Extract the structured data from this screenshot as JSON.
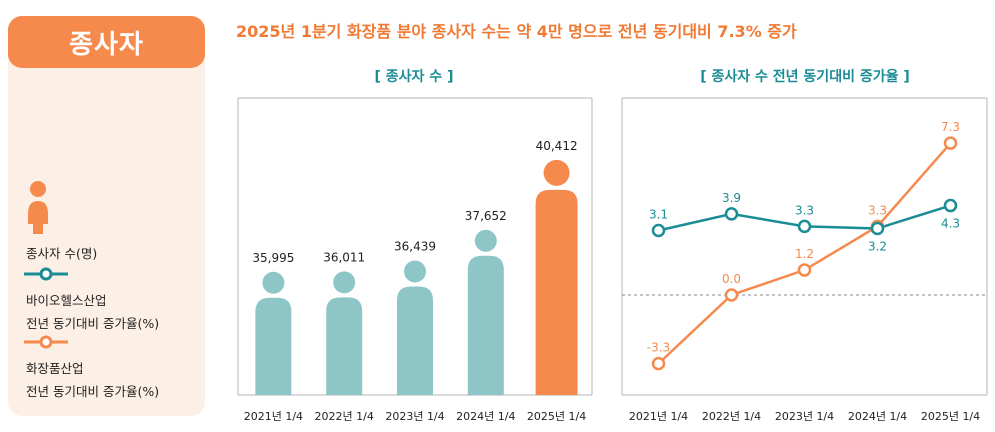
{
  "badge": "종사자",
  "headline": "2025년 1분기 화장품 분야 종사자 수는 약 4만 명으로 전년 동기대비 7.3% 증가",
  "legend": [
    {
      "icon": "person-icon",
      "line1": "종사자 수(명)",
      "line2": ""
    },
    {
      "icon": "teal-line-marker-icon",
      "line1": "바이오헬스산업",
      "line2": "전년 동기대비 증가율(%)"
    },
    {
      "icon": "orange-line-marker-icon",
      "line1": "화장품산업",
      "line2": "전년 동기대비 증가율(%)"
    }
  ],
  "colors": {
    "teal": "#1a8c95",
    "orange": "#f58a4c",
    "figure": "#8ec6c8",
    "badge_bg": "#f58a4c",
    "sidebar_bg": "#fcefe6"
  },
  "chart_data": [
    {
      "type": "bar",
      "title": "[ 종사자 수 ]",
      "categories": [
        "2021년 1/4",
        "2022년 1/4",
        "2023년 1/4",
        "2024년 1/4",
        "2025년 1/4"
      ],
      "values": [
        35995,
        36011,
        36439,
        37652,
        40412
      ],
      "value_labels": [
        "35,995",
        "36,011",
        "36,439",
        "37,652",
        "40,412"
      ],
      "highlight_index": 4
    },
    {
      "type": "line",
      "title": "[ 종사자 수 전년 동기대비 증가율 ]",
      "categories": [
        "2021년 1/4",
        "2022년 1/4",
        "2023년 1/4",
        "2024년 1/4",
        "2025년 1/4"
      ],
      "series": [
        {
          "name": "바이오헬스산업",
          "values": [
            3.1,
            3.9,
            3.3,
            3.2,
            4.3
          ],
          "labels": [
            "3.1",
            "3.9",
            "3.3",
            "3.2",
            "4.3"
          ]
        },
        {
          "name": "화장품산업",
          "values": [
            -3.3,
            0.0,
            1.2,
            3.3,
            7.3
          ],
          "labels": [
            "-3.3",
            "0.0",
            "1.2",
            "3.3",
            "7.3"
          ]
        }
      ],
      "zero_line": "dashed"
    }
  ]
}
